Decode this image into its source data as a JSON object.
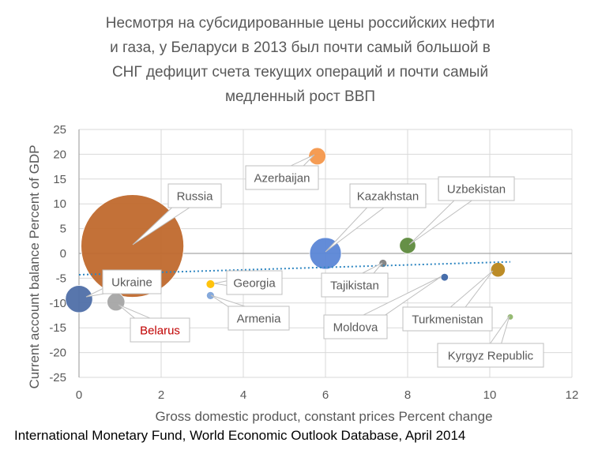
{
  "chart_data": {
    "type": "scatter",
    "title_lines": [
      "Несмотря на субсидированные цены российских нефти",
      "и газа, у Беларуси в 2013 был почти самый большой в",
      "СНГ дефицит счета текущих операций и почти самый",
      "медленный рост ВВП"
    ],
    "xlabel": "Gross domestic product, constant prices Percent change",
    "ylabel": "Current account balance Percent of GDP",
    "source": "International Monetary Fund, World Economic Outlook Database, April 2014",
    "xlim": [
      0,
      12
    ],
    "ylim": [
      -25,
      25
    ],
    "x_ticks": [
      "0",
      "2",
      "4",
      "6",
      "8",
      "10",
      "12"
    ],
    "y_ticks": [
      "25",
      "20",
      "15",
      "10",
      "5",
      "0",
      "-5",
      "-10",
      "-15",
      "-20",
      "-25"
    ],
    "grid": true,
    "bubble_size": "relative",
    "trendline": {
      "type": "linear",
      "style": "dotted",
      "color": "#2e86c1",
      "x": [
        0,
        10.5
      ],
      "y": [
        -4.3,
        -1.7
      ]
    },
    "points": [
      {
        "name": "Russia",
        "x": 1.3,
        "y": 1.5,
        "size": 100,
        "color": "#c0692d"
      },
      {
        "name": "Ukraine",
        "x": 0.0,
        "y": -9.2,
        "size": 7.0,
        "color": "#4f6fa8"
      },
      {
        "name": "Belarus",
        "x": 0.9,
        "y": -9.8,
        "size": 3.0,
        "color": "#a5a5a5",
        "label_color": "#c00000"
      },
      {
        "name": "Azerbaijan",
        "x": 5.8,
        "y": 19.6,
        "size": 2.8,
        "color": "#f4974b"
      },
      {
        "name": "Kazakhstan",
        "x": 6.0,
        "y": 0.0,
        "size": 9.5,
        "color": "#5b86d6"
      },
      {
        "name": "Uzbekistan",
        "x": 8.0,
        "y": 1.6,
        "size": 2.5,
        "color": "#5e8a3d"
      },
      {
        "name": "Georgia",
        "x": 3.2,
        "y": -6.2,
        "size": 0.7,
        "color": "#ffc000"
      },
      {
        "name": "Armenia",
        "x": 3.2,
        "y": -8.5,
        "size": 0.6,
        "color": "#7ea4d9"
      },
      {
        "name": "Tajikistan",
        "x": 7.4,
        "y": -2.0,
        "size": 0.6,
        "color": "#7f7f7f"
      },
      {
        "name": "Moldova",
        "x": 8.9,
        "y": -4.8,
        "size": 0.55,
        "color": "#3d66a6"
      },
      {
        "name": "Turkmenistan",
        "x": 10.2,
        "y": -3.3,
        "size": 2.0,
        "color": "#b8861b"
      },
      {
        "name": "Kyrgyz Republic",
        "x": 10.5,
        "y": -12.8,
        "size": 0.35,
        "color": "#8fb66a"
      }
    ]
  }
}
